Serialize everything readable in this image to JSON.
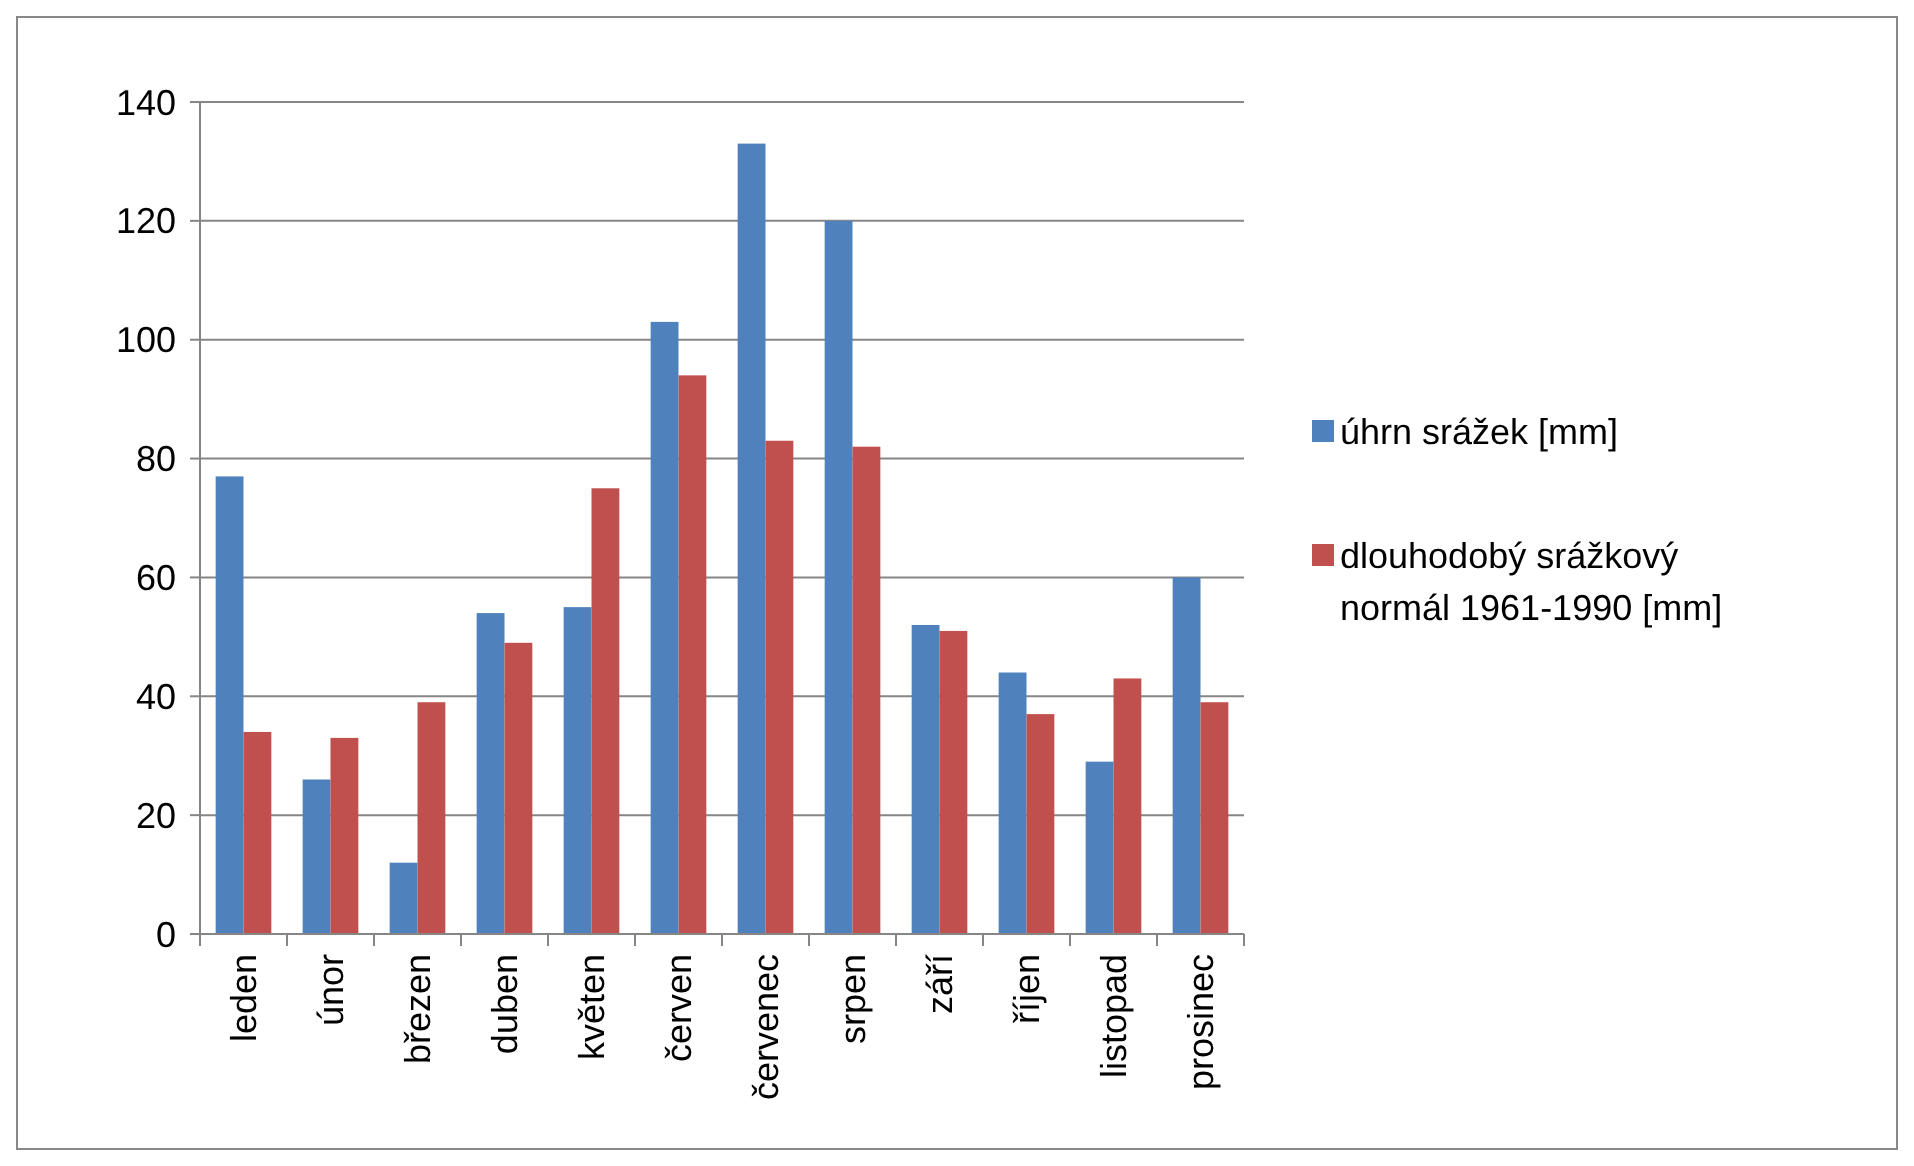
{
  "chart_data": {
    "type": "bar",
    "categories": [
      "leden",
      "únor",
      "březen",
      "duben",
      "květen",
      "červen",
      "červenec",
      "srpen",
      "září",
      "říjen",
      "listopad",
      "prosinec"
    ],
    "series": [
      {
        "name": "úhrn srážek [mm]",
        "color": "#4f81bd",
        "values": [
          77,
          26,
          12,
          54,
          55,
          103,
          133,
          120,
          52,
          44,
          29,
          60
        ]
      },
      {
        "name": "dlouhodobý srážkový normál 1961-1990 [mm]",
        "color": "#c0504d",
        "values": [
          34,
          33,
          39,
          49,
          75,
          94,
          83,
          82,
          51,
          37,
          43,
          39
        ]
      }
    ],
    "ylim": [
      0,
      140
    ],
    "yticks": [
      0,
      20,
      40,
      60,
      80,
      100,
      120,
      140
    ],
    "grid": "y",
    "legend": "right"
  }
}
